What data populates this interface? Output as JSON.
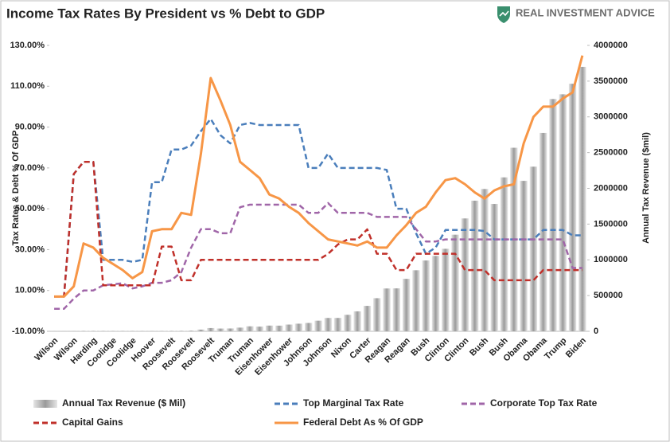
{
  "brand": "REAL INVESTMENT ADVICE",
  "chart_data": {
    "type": "combo",
    "title": "Income Tax Rates By President vs % Debt to GDP",
    "y_label": "Tax Rates & Debt % Of GDP",
    "y2_label": "Annual Tax Revenue ($mil)",
    "categories": [
      "Wilson",
      null,
      "Wilson",
      null,
      "Harding",
      null,
      "Coolidge",
      null,
      "Coolidge",
      null,
      "Hoover",
      null,
      "Roosevelt",
      null,
      "Roosevelt",
      null,
      "Roosevelt",
      null,
      "Truman",
      null,
      "Truman",
      null,
      "Eisenhower",
      null,
      "Eisenhower",
      null,
      "Johnson",
      null,
      "Johnson",
      null,
      "Nixon",
      null,
      "Carter",
      null,
      "Reagan",
      null,
      "Reagan",
      null,
      "Bush",
      null,
      "Clinton",
      null,
      "Clinton",
      null,
      "Bush",
      null,
      "Bush",
      null,
      "Obama",
      null,
      "Obama",
      null,
      "Trump",
      null,
      "Biden"
    ],
    "ylim": [
      -10,
      130
    ],
    "yticks": [
      {
        "value": -10,
        "label": "-10.00%"
      },
      {
        "value": 10,
        "label": "10.00%"
      },
      {
        "value": 30,
        "label": "30.00%"
      },
      {
        "value": 50,
        "label": "50.00%"
      },
      {
        "value": 70,
        "label": "70.00%"
      },
      {
        "value": 90,
        "label": "90.00%"
      },
      {
        "value": 110,
        "label": "110.00%"
      },
      {
        "value": 130,
        "label": "130.00%"
      }
    ],
    "y2lim": [
      0,
      4000000
    ],
    "y2ticks": [
      0,
      500000,
      1000000,
      1500000,
      2000000,
      2500000,
      3000000,
      3500000,
      4000000
    ],
    "series": [
      {
        "name": "Annual Tax Revenue ($ Mil)",
        "type": "bar",
        "axis": "y2",
        "color": "#a6a6a6",
        "values": [
          700,
          700,
          1100,
          5100,
          5600,
          3900,
          3600,
          4000,
          3900,
          3100,
          2000,
          3600,
          5400,
          6300,
          8700,
          24000,
          45200,
          38500,
          39400,
          51600,
          69600,
          65500,
          80000,
          79200,
          94400,
          106600,
          116800,
          148800,
          186900,
          187100,
          230800,
          279100,
          355600,
          463300,
          599300,
          600600,
          734000,
          854300,
          991100,
          1055000,
          1154300,
          1351800,
          1579200,
          1827500,
          1991100,
          1782300,
          2153600,
          2568000,
          2105000,
          2303500,
          2775100,
          3249900,
          3316200,
          3463400,
          3700000
        ]
      },
      {
        "name": "Top Marginal Tax Rate",
        "type": "line",
        "dash": true,
        "color": "#4a7ebb",
        "values": [
          7,
          7,
          67,
          73,
          73,
          25,
          25,
          25,
          24,
          25,
          63,
          63,
          79,
          79,
          81,
          88,
          94,
          86,
          82,
          91,
          92,
          91,
          91,
          91,
          91,
          91,
          70,
          70,
          77,
          70,
          70,
          70,
          70,
          70,
          69,
          50,
          50,
          38,
          28,
          31,
          39.6,
          39.6,
          39.6,
          39.6,
          39.1,
          35,
          35,
          35,
          35,
          35,
          39.6,
          39.6,
          39.6,
          37,
          37
        ]
      },
      {
        "name": "Corporate Top Tax Rate",
        "type": "line",
        "dash": true,
        "color": "#a066a8",
        "values": [
          1,
          1,
          6,
          10,
          10,
          12.5,
          13,
          13.5,
          11,
          12,
          13.75,
          13.75,
          15,
          19,
          31,
          40,
          40,
          38,
          38,
          50.75,
          52,
          52,
          52,
          52,
          52,
          52,
          48,
          48,
          52.8,
          48,
          48,
          48,
          48,
          46,
          46,
          46,
          46,
          40,
          34,
          34,
          35,
          35,
          35,
          35,
          35,
          35,
          35,
          35,
          35,
          35,
          35,
          35,
          35,
          21,
          21
        ]
      },
      {
        "name": "Capital Gains",
        "type": "line",
        "dash": true,
        "color": "#c0302a",
        "values": [
          7,
          7,
          67,
          73,
          73,
          12.5,
          12.5,
          12.5,
          12.5,
          12.5,
          12.5,
          31.5,
          31.5,
          15,
          15,
          25,
          25,
          25,
          25,
          25,
          25,
          25,
          25,
          25,
          25,
          25,
          25,
          25,
          27.9,
          32.5,
          35,
          35,
          39.9,
          28,
          28,
          20,
          20,
          28,
          28,
          28,
          28,
          28,
          20,
          20,
          20,
          15,
          15,
          15,
          15,
          15,
          20,
          20,
          20,
          20,
          20
        ]
      },
      {
        "name": "Federal Debt As % Of GDP",
        "type": "line",
        "dash": false,
        "color": "#f79646",
        "values": [
          7,
          7,
          12,
          33,
          31,
          26,
          23,
          20,
          16,
          19,
          39,
          40,
          40,
          48,
          47,
          77,
          114,
          103,
          91,
          73,
          69,
          65,
          57,
          55,
          51,
          48,
          43,
          39,
          35,
          34,
          33,
          32,
          34,
          31,
          31,
          37,
          42,
          48,
          51,
          58,
          64,
          65,
          62,
          58,
          55,
          59,
          61,
          62,
          82,
          95,
          100,
          100,
          104,
          107,
          125
        ]
      }
    ]
  }
}
